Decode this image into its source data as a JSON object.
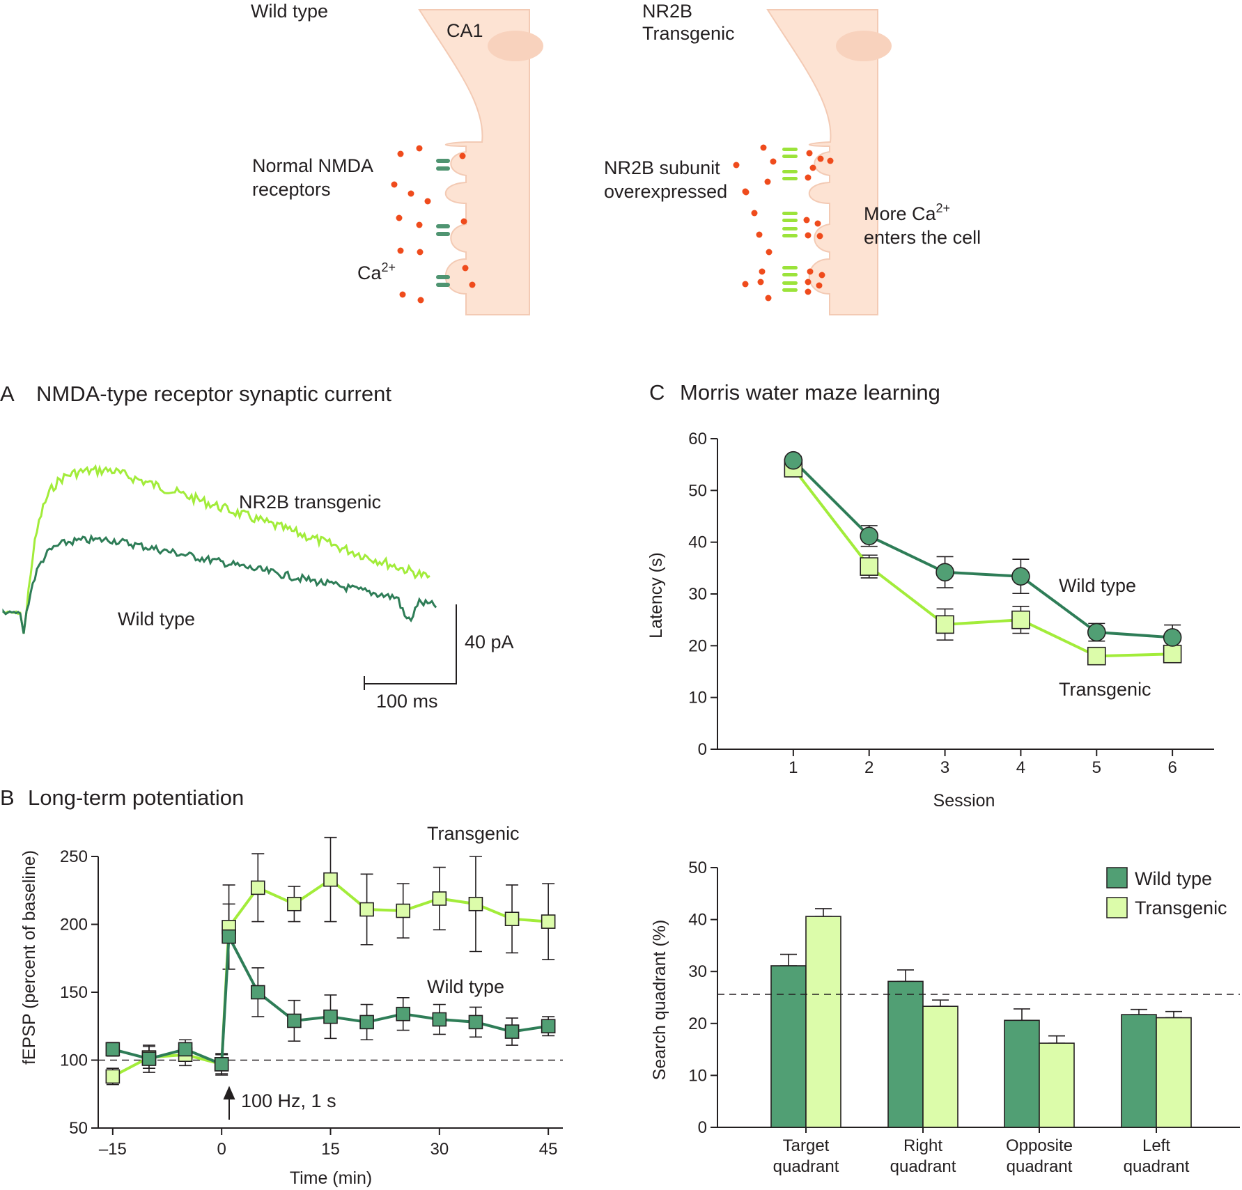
{
  "colors": {
    "wild_type": "#2e7d57",
    "wild_type_fill": "#519f74",
    "transgenic": "#a2ec3a",
    "transgenic_fill": "#dcfcaa",
    "cell": "#fde3d3",
    "cell_outline": "#f3cab4",
    "calcium": "#ef4b1c"
  },
  "diagram": {
    "wt_title": "Wild type",
    "ca1_label": "CA1",
    "tg_title_line1": "NR2B",
    "tg_title_line2": "Transgenic",
    "normal_line1": "Normal NMDA",
    "normal_line2": "receptors",
    "calcium_label": "Ca",
    "calcium_sup": "2+",
    "nr2b_line1": "NR2B subunit",
    "nr2b_line2": "overexpressed",
    "more_line1": "More Ca",
    "more_sup": "2+",
    "more_line2": "enters the cell"
  },
  "panel_a": {
    "letter": "A",
    "title": "NMDA-type receptor synaptic current",
    "tg_label": "NR2B transgenic",
    "wt_label": "Wild type",
    "scale_y": "40 pA",
    "scale_x": "100 ms"
  },
  "panel_b": {
    "letter": "B",
    "title": "Long-term potentiation",
    "ylabel": "fEPSP (percent of baseline)",
    "xlabel": "Time (min)",
    "tg_label": "Transgenic",
    "wt_label": "Wild type",
    "arrow_label": "100 Hz, 1 s"
  },
  "panel_c": {
    "letter": "C",
    "title": "Morris water maze learning",
    "ylabel": "Latency (s)",
    "xlabel": "Session",
    "wt_label": "Wild type",
    "tg_label": "Transgenic"
  },
  "panel_d": {
    "ylabel": "Search quadrant (%)",
    "legend_wt": "Wild type",
    "legend_tg": "Transgenic",
    "cat_lines": [
      [
        "Target",
        "quadrant"
      ],
      [
        "Right",
        "quadrant"
      ],
      [
        "Opposite",
        "quadrant"
      ],
      [
        "Left",
        "quadrant"
      ]
    ]
  },
  "chart_data": [
    {
      "type": "line",
      "panel": "B",
      "title": "Long-term potentiation",
      "xlabel": "Time (min)",
      "ylabel": "fEPSP (percent of baseline)",
      "xlim": [
        -17,
        47
      ],
      "ylim": [
        50,
        250
      ],
      "xticks": [
        -15,
        0,
        15,
        30,
        45
      ],
      "xtick_labels": [
        "–15",
        "0",
        "15",
        "30",
        "45"
      ],
      "yticks": [
        50,
        100,
        150,
        200,
        250
      ],
      "baseline": 100,
      "series": [
        {
          "name": "Transgenic",
          "x": [
            -15,
            -10,
            -5,
            0,
            1,
            5,
            10,
            15,
            20,
            25,
            30,
            35,
            40,
            45
          ],
          "y": [
            88,
            102,
            104,
            97,
            198,
            227,
            215,
            233,
            211,
            210,
            219,
            215,
            204,
            202
          ],
          "err": [
            6,
            8,
            8,
            7,
            31,
            25,
            13,
            31,
            26,
            20,
            23,
            35,
            25,
            28
          ]
        },
        {
          "name": "Wild type",
          "x": [
            -15,
            -10,
            -5,
            0,
            1,
            5,
            10,
            15,
            20,
            25,
            30,
            35,
            40,
            45
          ],
          "y": [
            108,
            101,
            108,
            97,
            191,
            150,
            129,
            132,
            128,
            134,
            130,
            128,
            121,
            125
          ],
          "err": [
            5,
            10,
            7,
            8,
            24,
            18,
            15,
            16,
            13,
            12,
            11,
            11,
            10,
            7
          ]
        }
      ]
    },
    {
      "type": "line",
      "panel": "C",
      "title": "Morris water maze learning",
      "xlabel": "Session",
      "ylabel": "Latency (s)",
      "xlim": [
        0,
        6.55
      ],
      "ylim": [
        0,
        60
      ],
      "xticks": [
        1,
        2,
        3,
        4,
        5,
        6
      ],
      "yticks": [
        0,
        10,
        20,
        30,
        40,
        50,
        60
      ],
      "series": [
        {
          "name": "Wild type",
          "x": [
            1,
            2,
            3,
            4,
            5,
            6
          ],
          "y": [
            55.8,
            41.2,
            34.2,
            33.4,
            22.6,
            21.6
          ],
          "err": [
            0.8,
            2.0,
            3.0,
            3.3,
            1.7,
            2.4
          ]
        },
        {
          "name": "Transgenic",
          "x": [
            1,
            2,
            3,
            4,
            5,
            6
          ],
          "y": [
            54.3,
            35.3,
            24.1,
            25.0,
            18.0,
            18.4
          ],
          "err": [
            0.8,
            2.2,
            3.0,
            2.6,
            1.6,
            1.2
          ]
        }
      ]
    },
    {
      "type": "bar",
      "panel": "D",
      "ylabel": "Search quadrant (%)",
      "categories": [
        "Target quadrant",
        "Right quadrant",
        "Opposite quadrant",
        "Left quadrant"
      ],
      "ylim": [
        0,
        50
      ],
      "yticks": [
        0,
        10,
        20,
        30,
        40,
        50
      ],
      "chance_line": 25.6,
      "legend": "top-right",
      "series": [
        {
          "name": "Wild type",
          "values": [
            31.1,
            28.1,
            20.6,
            21.7
          ],
          "err": [
            2.2,
            2.2,
            2.2,
            1.0
          ]
        },
        {
          "name": "Transgenic",
          "values": [
            40.6,
            23.3,
            16.2,
            21.1
          ],
          "err": [
            1.5,
            1.2,
            1.4,
            1.2
          ]
        }
      ]
    }
  ]
}
